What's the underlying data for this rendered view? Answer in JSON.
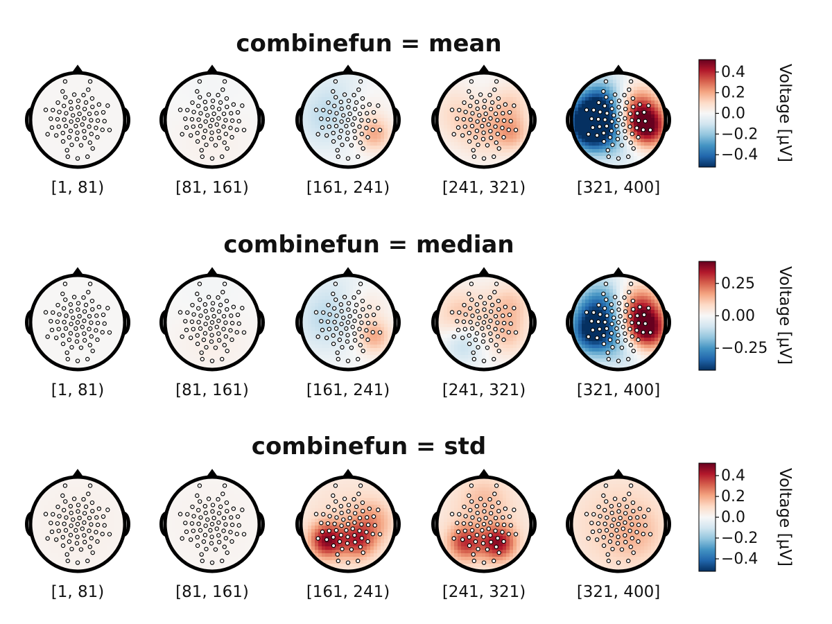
{
  "chart_data": {
    "type": "heatmap",
    "subtype": "topoplot-series",
    "colormap": "RdBu (diverging, red = positive, blue = negative)",
    "interval_labels": [
      "[1, 81)",
      "[81, 161)",
      "[161, 241)",
      "[241, 321)",
      "[321, 400]"
    ],
    "rows": [
      {
        "title": "combinefun = mean",
        "colorbar": {
          "label": "Voltage [μV]",
          "ticks": [
            "0.4",
            "0.2",
            "0.0",
            "−0.2",
            "−0.4"
          ],
          "tick_values": [
            0.4,
            0.2,
            0.0,
            -0.2,
            -0.4
          ],
          "range": [
            -0.52,
            0.52
          ]
        },
        "topos": [
          {
            "interval": "[1, 81)",
            "sources": [
              {
                "x": 0.0,
                "y": 0.0,
                "value": 0.01,
                "spread": 0.9
              }
            ]
          },
          {
            "interval": "[81, 161)",
            "sources": [
              {
                "x": 0.0,
                "y": -0.3,
                "value": 0.03,
                "spread": 0.6
              },
              {
                "x": 0.0,
                "y": 0.4,
                "value": -0.02,
                "spread": 0.5
              }
            ]
          },
          {
            "interval": "[161, 241)",
            "sources": [
              {
                "x": -0.5,
                "y": 0.05,
                "value": -0.12,
                "spread": 0.5
              },
              {
                "x": 0.0,
                "y": 0.6,
                "value": -0.06,
                "spread": 0.45
              },
              {
                "x": 0.55,
                "y": -0.3,
                "value": 0.2,
                "spread": 0.25
              },
              {
                "x": 0.3,
                "y": 0.3,
                "value": 0.07,
                "spread": 0.35
              }
            ]
          },
          {
            "interval": "[241, 321)",
            "sources": [
              {
                "x": -0.45,
                "y": 0.15,
                "value": 0.12,
                "spread": 0.45
              },
              {
                "x": 0.1,
                "y": -0.25,
                "value": 0.1,
                "spread": 0.4
              },
              {
                "x": 0.55,
                "y": 0.3,
                "value": 0.12,
                "spread": 0.35
              },
              {
                "x": 0.6,
                "y": -0.3,
                "value": 0.15,
                "spread": 0.25
              },
              {
                "x": -0.1,
                "y": 0.45,
                "value": -0.05,
                "spread": 0.35
              }
            ]
          },
          {
            "interval": "[321, 400]",
            "sources": [
              {
                "x": -0.55,
                "y": -0.2,
                "value": -0.5,
                "spread": 0.35
              },
              {
                "x": -0.3,
                "y": 0.35,
                "value": -0.35,
                "spread": 0.4
              },
              {
                "x": -0.6,
                "y": 0.05,
                "value": -0.3,
                "spread": 0.35
              },
              {
                "x": 0.35,
                "y": 0.25,
                "value": 0.35,
                "spread": 0.35
              },
              {
                "x": 0.6,
                "y": -0.15,
                "value": 0.5,
                "spread": 0.3
              },
              {
                "x": 0.05,
                "y": -0.55,
                "value": -0.1,
                "spread": 0.35
              }
            ]
          }
        ]
      },
      {
        "title": "combinefun = median",
        "colorbar": {
          "label": "Voltage [μV]",
          "ticks": [
            "0.25",
            "0.00",
            "−0.25"
          ],
          "tick_values": [
            0.25,
            0.0,
            -0.25
          ],
          "range": [
            -0.42,
            0.42
          ]
        },
        "topos": [
          {
            "interval": "[1, 81)",
            "sources": [
              {
                "x": 0.0,
                "y": 0.0,
                "value": 0.005,
                "spread": 0.9
              }
            ]
          },
          {
            "interval": "[81, 161)",
            "sources": [
              {
                "x": 0.0,
                "y": -0.3,
                "value": 0.03,
                "spread": 0.6
              },
              {
                "x": 0.0,
                "y": 0.4,
                "value": -0.02,
                "spread": 0.5
              }
            ]
          },
          {
            "interval": "[161, 241)",
            "sources": [
              {
                "x": -0.5,
                "y": 0.05,
                "value": -0.1,
                "spread": 0.5
              },
              {
                "x": 0.0,
                "y": 0.6,
                "value": -0.05,
                "spread": 0.45
              },
              {
                "x": 0.55,
                "y": -0.3,
                "value": 0.16,
                "spread": 0.25
              },
              {
                "x": 0.3,
                "y": 0.35,
                "value": 0.08,
                "spread": 0.35
              }
            ]
          },
          {
            "interval": "[241, 321)",
            "sources": [
              {
                "x": -0.5,
                "y": 0.15,
                "value": 0.12,
                "spread": 0.4
              },
              {
                "x": -0.45,
                "y": -0.45,
                "value": -0.12,
                "spread": 0.3
              },
              {
                "x": 0.55,
                "y": 0.35,
                "value": 0.12,
                "spread": 0.35
              },
              {
                "x": 0.5,
                "y": -0.3,
                "value": 0.1,
                "spread": 0.3
              }
            ]
          },
          {
            "interval": "[321, 400]",
            "sources": [
              {
                "x": -0.55,
                "y": -0.2,
                "value": -0.4,
                "spread": 0.35
              },
              {
                "x": -0.35,
                "y": 0.35,
                "value": -0.28,
                "spread": 0.4
              },
              {
                "x": 0.4,
                "y": 0.3,
                "value": 0.3,
                "spread": 0.35
              },
              {
                "x": 0.6,
                "y": -0.15,
                "value": 0.4,
                "spread": 0.3
              },
              {
                "x": 0.05,
                "y": -0.55,
                "value": -0.1,
                "spread": 0.35
              }
            ]
          }
        ]
      },
      {
        "title": "combinefun = std",
        "colorbar": {
          "label": "Voltage [μV]",
          "ticks": [
            "0.4",
            "0.2",
            "0.0",
            "−0.2",
            "−0.4"
          ],
          "tick_values": [
            0.4,
            0.2,
            0.0,
            -0.2,
            -0.4
          ],
          "range": [
            -0.52,
            0.52
          ]
        },
        "topos": [
          {
            "interval": "[1, 81)",
            "sources": [
              {
                "x": 0.0,
                "y": 0.0,
                "value": 0.03,
                "spread": 0.9
              }
            ]
          },
          {
            "interval": "[81, 161)",
            "sources": [
              {
                "x": 0.0,
                "y": 0.0,
                "value": 0.02,
                "spread": 0.9
              }
            ]
          },
          {
            "interval": "[161, 241)",
            "sources": [
              {
                "x": 0.0,
                "y": 0.0,
                "value": 0.1,
                "spread": 0.9
              },
              {
                "x": -0.45,
                "y": -0.35,
                "value": 0.4,
                "spread": 0.25
              },
              {
                "x": 0.2,
                "y": -0.35,
                "value": 0.28,
                "spread": 0.25
              },
              {
                "x": 0.5,
                "y": 0.05,
                "value": 0.15,
                "spread": 0.3
              }
            ]
          },
          {
            "interval": "[241, 321)",
            "sources": [
              {
                "x": 0.0,
                "y": 0.0,
                "value": 0.1,
                "spread": 0.9
              },
              {
                "x": -0.4,
                "y": -0.4,
                "value": 0.3,
                "spread": 0.25
              },
              {
                "x": 0.3,
                "y": -0.4,
                "value": 0.38,
                "spread": 0.25
              },
              {
                "x": 0.0,
                "y": 0.55,
                "value": 0.08,
                "spread": 0.35
              }
            ]
          },
          {
            "interval": "[321, 400]",
            "sources": [
              {
                "x": 0.0,
                "y": 0.0,
                "value": 0.12,
                "spread": 0.9
              },
              {
                "x": 0.35,
                "y": -0.2,
                "value": 0.08,
                "spread": 0.4
              }
            ]
          }
        ]
      }
    ]
  }
}
